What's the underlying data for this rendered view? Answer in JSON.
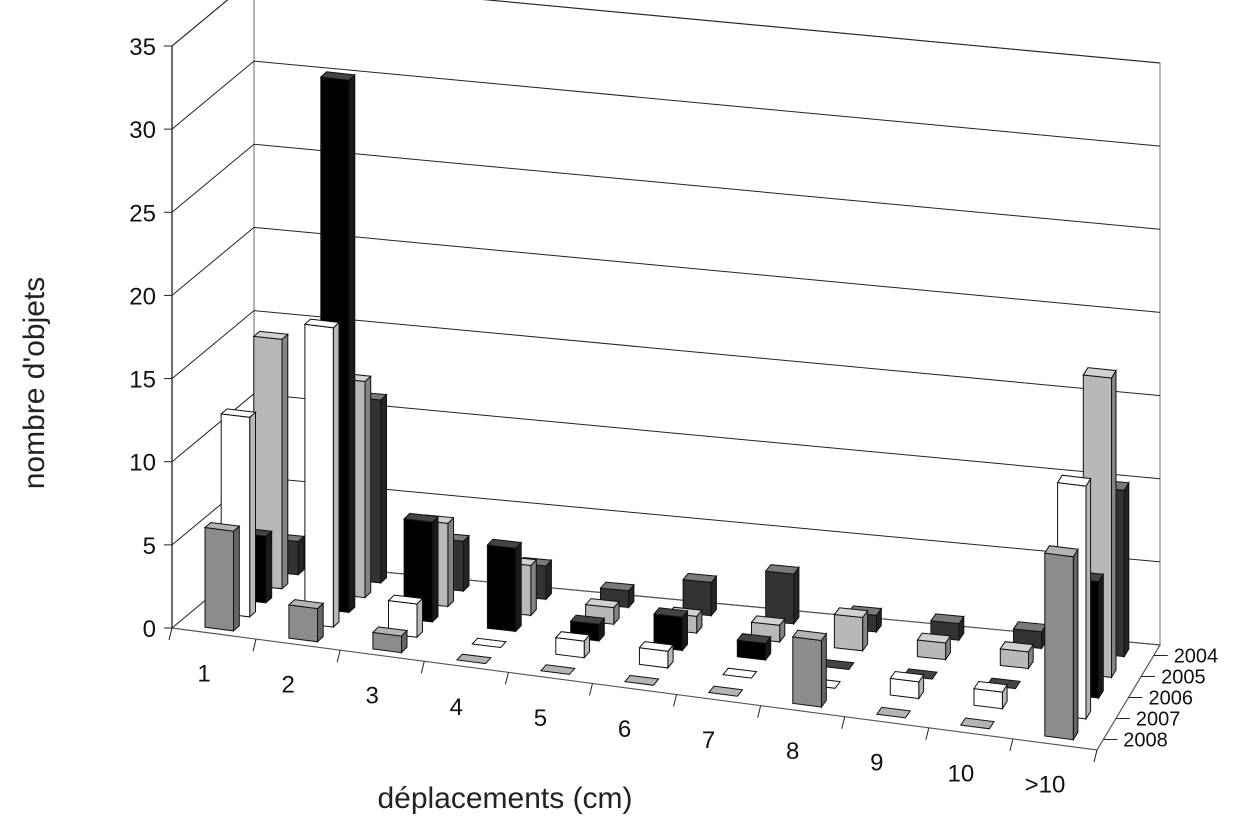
{
  "chart_data": {
    "type": "bar",
    "subtype": "3d-grouped-depth",
    "xlabel": "déplacements (cm)",
    "ylabel": "nombre d'objets",
    "ylim": [
      0,
      35
    ],
    "yticks": [
      "0",
      "5",
      "10",
      "15",
      "20",
      "25",
      "30",
      "35"
    ],
    "categories": [
      "1",
      "2",
      "3",
      "4",
      "5",
      "6",
      "7",
      "8",
      "9",
      "10",
      ">10"
    ],
    "grid": true,
    "series": [
      {
        "name": "2004",
        "color": "#333333",
        "values": [
          2,
          11,
          3,
          2,
          1,
          2,
          3,
          1,
          1,
          1,
          10
        ]
      },
      {
        "name": "2005",
        "color": "#b8b8b8",
        "values": [
          15,
          13,
          5,
          3,
          1,
          1,
          1,
          2,
          1,
          1,
          18
        ]
      },
      {
        "name": "2006",
        "color": "#000000",
        "values": [
          4,
          32,
          6,
          5,
          1,
          2,
          1,
          0,
          0,
          0,
          7
        ]
      },
      {
        "name": "2007",
        "color": "#ffffff",
        "values": [
          12,
          18,
          2,
          0,
          1,
          1,
          0,
          0,
          1,
          1,
          14
        ]
      },
      {
        "name": "2008",
        "color": "#8c8c8c",
        "values": [
          6,
          2,
          1,
          0,
          0,
          0,
          0,
          4,
          0,
          0,
          11
        ]
      }
    ]
  }
}
